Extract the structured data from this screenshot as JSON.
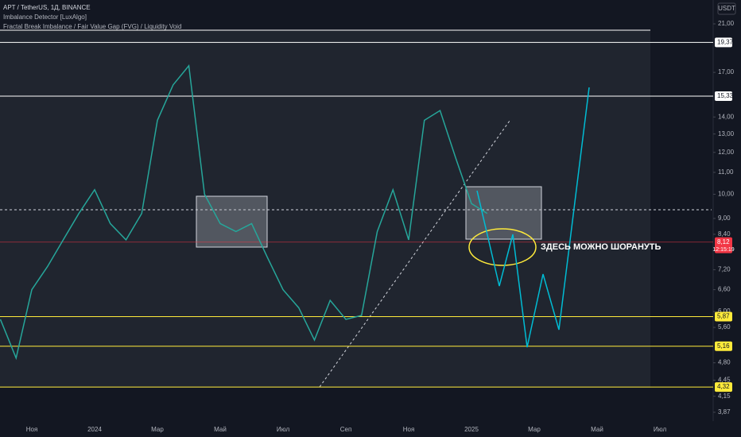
{
  "header": {
    "symbol": "APT / TetherUS, 1Д, BINANCE",
    "indicator1": "Imbalance Detector [LuxAlgo]",
    "indicator2": "Fractal Break Imbalance / Fair Value Gap (FVG) / Liquidity Void",
    "currency": "USDT",
    "timer": "12:15:19"
  },
  "annotation": "ЗДЕСЬ МОЖНО ШОРАНУТЬ",
  "chart_data": {
    "type": "line",
    "log_scale": true,
    "color": "#26a69a",
    "categories": [
      null,
      null,
      "Ноя",
      null,
      null,
      null,
      "2024",
      null,
      null,
      null,
      "Мар",
      null,
      null,
      null,
      "Май",
      null,
      null,
      null,
      "Июл",
      null,
      null,
      null,
      "Сеп",
      null,
      null,
      null,
      "Ноя",
      null,
      null,
      null,
      "2025",
      null,
      null,
      null,
      "Мар",
      null,
      null,
      null,
      "Май",
      null,
      null,
      null,
      "Июл"
    ],
    "values": [
      5.8,
      4.9,
      6.6,
      7.3,
      8.2,
      9.2,
      10.2,
      8.8,
      8.2,
      9.2,
      13.8,
      16.1,
      17.5,
      10.0,
      8.8,
      8.5,
      8.8,
      7.6,
      6.6,
      6.1,
      5.3,
      6.3,
      5.8,
      5.9,
      8.5,
      10.2,
      8.2,
      13.8,
      14.4,
      11.7,
      9.6,
      9.2,
      null,
      null,
      null,
      null,
      null,
      null,
      null,
      null,
      null,
      null,
      null
    ],
    "ylim": [
      3.66,
      23.3
    ],
    "yticks": [
      {
        "value": 21,
        "label": "21,00"
      },
      {
        "value": 17,
        "label": "17,00"
      },
      {
        "value": 14,
        "label": "14,00"
      },
      {
        "value": 13,
        "label": "13,00"
      },
      {
        "value": 12,
        "label": "12,00"
      },
      {
        "value": 11,
        "label": "11,00"
      },
      {
        "value": 10,
        "label": "10,00"
      },
      {
        "value": 9,
        "label": "9,00"
      },
      {
        "value": 8.4,
        "label": "8,40"
      },
      {
        "value": 7.2,
        "label": "7,20"
      },
      {
        "value": 6.6,
        "label": "6,60"
      },
      {
        "value": 6,
        "label": "6,00"
      },
      {
        "value": 5.6,
        "label": "5,60"
      },
      {
        "value": 4.8,
        "label": "4,80"
      },
      {
        "value": 4.45,
        "label": "4,45"
      },
      {
        "value": 4.15,
        "label": "4,15"
      },
      {
        "value": 3.87,
        "label": "3,87"
      }
    ],
    "levels": [
      {
        "value": 19.37,
        "label": "19,37",
        "color": "#ffffff"
      },
      {
        "value": 15.33,
        "label": "15,33",
        "color": "#ffffff"
      },
      {
        "value": 8.12,
        "label": "8,12",
        "color": "#f23645"
      },
      {
        "value": 5.87,
        "label": "5,87",
        "color": "#ffeb3b"
      },
      {
        "value": 5.16,
        "label": "5,16",
        "color": "#ffeb3b"
      },
      {
        "value": 4.32,
        "label": "4,32",
        "color": "#ffeb3b"
      }
    ]
  }
}
